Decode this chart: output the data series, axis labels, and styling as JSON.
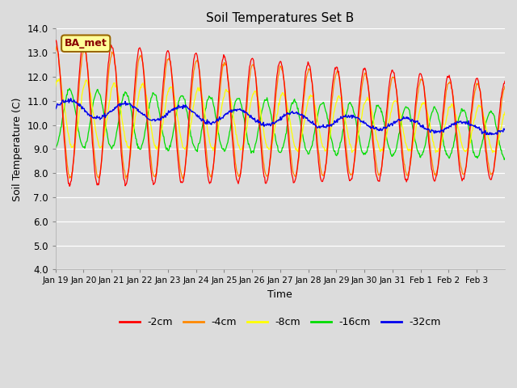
{
  "title": "Soil Temperatures Set B",
  "xlabel": "Time",
  "ylabel": "Soil Temperature (C)",
  "ylim": [
    4.0,
    14.0
  ],
  "yticks": [
    4.0,
    5.0,
    6.0,
    7.0,
    8.0,
    9.0,
    10.0,
    11.0,
    12.0,
    13.0,
    14.0
  ],
  "xtick_labels": [
    "Jan 19",
    "Jan 20",
    "Jan 21",
    "Jan 22",
    "Jan 23",
    "Jan 24",
    "Jan 25",
    "Jan 26",
    "Jan 27",
    "Jan 28",
    "Jan 29",
    "Jan 30",
    "Jan 31",
    "Feb 1",
    "Feb 2",
    "Feb 3"
  ],
  "colors": {
    "-2cm": "#ff0000",
    "-4cm": "#ff8800",
    "-8cm": "#ffff00",
    "-16cm": "#00dd00",
    "-32cm": "#0000ee"
  },
  "legend_labels": [
    "-2cm",
    "-4cm",
    "-8cm",
    "-16cm",
    "-32cm"
  ],
  "label_text": "BA_met",
  "label_bg": "#ffff99",
  "label_border": "#996600",
  "plot_bg": "#dcdcdc",
  "fig_bg": "#dcdcdc",
  "n_days": 16,
  "samples_per_day": 48
}
